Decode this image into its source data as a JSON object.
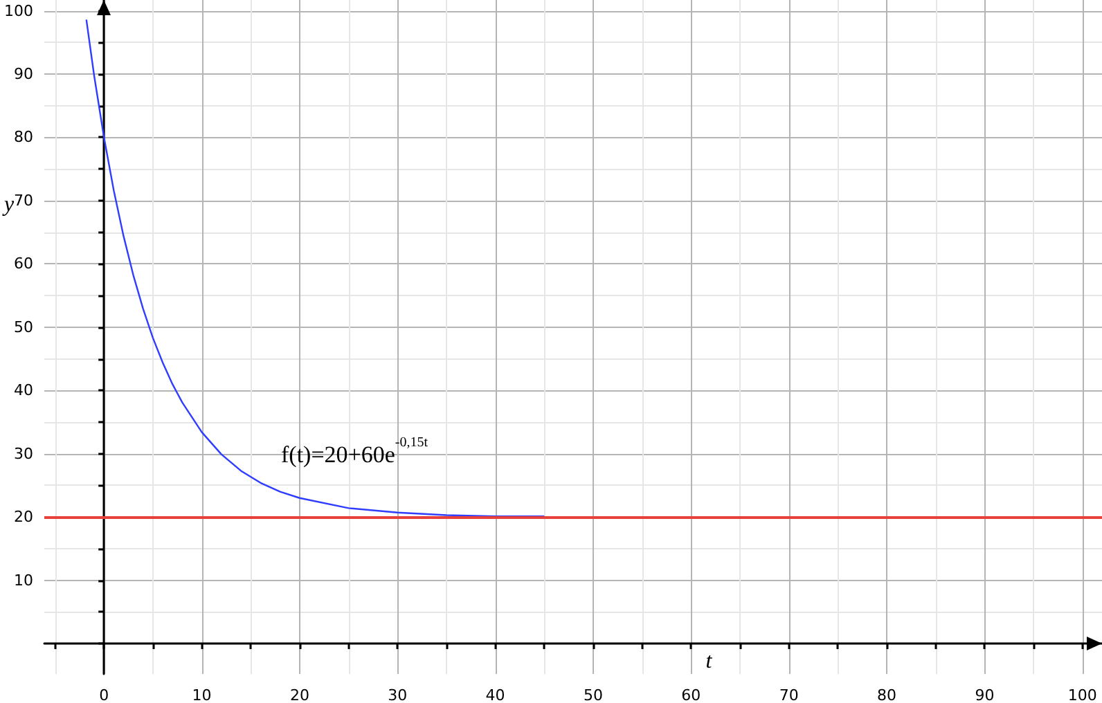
{
  "chart_data": {
    "type": "line",
    "xlabel": "t",
    "ylabel": "y",
    "x": [
      -1.8,
      -1,
      0,
      1,
      2,
      3,
      4,
      5,
      6,
      7,
      8,
      10,
      12,
      14,
      16,
      18,
      20,
      25,
      30,
      35,
      40,
      45
    ],
    "series": [
      {
        "color": "#2f3dff",
        "values": [
          98.6,
          89.7,
          80,
          71.6,
          64.4,
          58.2,
          52.9,
          48.3,
          44.4,
          41.0,
          38.1,
          33.4,
          29.9,
          27.3,
          25.4,
          24.0,
          23.0,
          21.4,
          20.7,
          20.3,
          20.1,
          20.1
        ]
      }
    ],
    "xlim": [
      -6.1,
      102
    ],
    "ylim": [
      -4.8,
      101.7
    ],
    "xticks": [
      {
        "value": -5,
        "label": null
      },
      0,
      {
        "value": 5,
        "label": null
      },
      10,
      {
        "value": 15,
        "label": null
      },
      20,
      {
        "value": 25,
        "label": null
      },
      30,
      {
        "value": 35,
        "label": null
      },
      40,
      {
        "value": 45,
        "label": null
      },
      50,
      {
        "value": 55,
        "label": null
      },
      60,
      {
        "value": 65,
        "label": null
      },
      70,
      {
        "value": 75,
        "label": null
      },
      80,
      {
        "value": 85,
        "label": null
      },
      90,
      {
        "value": 95,
        "label": null
      },
      100
    ],
    "yticks": [
      {
        "value": 0,
        "label": null
      },
      {
        "value": 5,
        "label": null
      },
      10,
      {
        "value": 15,
        "label": null
      },
      20,
      {
        "value": 25,
        "label": null
      },
      30,
      {
        "value": 35,
        "label": null
      },
      40,
      {
        "value": 45,
        "label": null
      },
      50,
      {
        "value": 55,
        "label": null
      },
      60,
      {
        "value": 65,
        "label": null
      },
      70,
      {
        "value": 75,
        "label": null
      },
      80,
      {
        "value": 85,
        "label": null
      },
      90,
      {
        "value": 95,
        "label": null
      },
      100
    ],
    "ref_lines": [
      {
        "axis": "y",
        "value": 20,
        "label": null,
        "color": "#e8403a"
      }
    ],
    "annotations": [
      "f(t)=20+60e$^{-0,15t}$"
    ],
    "grid": true,
    "marker": "none",
    "line_style": "solid"
  }
}
